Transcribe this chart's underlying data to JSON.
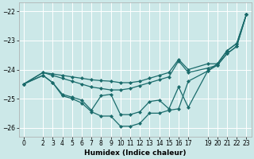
{
  "xlabel": "Humidex (Indice chaleur)",
  "bg_color": "#cce8e8",
  "line_color": "#1a6b6b",
  "grid_color": "#ffffff",
  "xlim": [
    -0.5,
    23.5
  ],
  "ylim": [
    -26.3,
    -21.7
  ],
  "yticks": [
    -26,
    -25,
    -24,
    -23,
    -22
  ],
  "xticks": [
    0,
    2,
    3,
    4,
    5,
    6,
    7,
    8,
    9,
    10,
    11,
    12,
    13,
    14,
    15,
    16,
    17,
    19,
    20,
    21,
    22,
    23
  ],
  "series": [
    {
      "x": [
        0,
        2,
        3,
        4,
        5,
        6,
        7,
        8,
        9,
        10,
        11,
        12,
        13,
        14,
        15,
        16,
        17,
        19,
        20,
        21,
        22,
        23
      ],
      "y": [
        -24.5,
        -24.1,
        -24.15,
        -24.2,
        -24.25,
        -24.3,
        -24.35,
        -24.38,
        -24.4,
        -24.45,
        -24.45,
        -24.4,
        -24.3,
        -24.2,
        -24.1,
        -23.65,
        -24.0,
        -23.8,
        -23.8,
        -23.35,
        -23.1,
        -22.1
      ]
    },
    {
      "x": [
        0,
        2,
        3,
        4,
        5,
        6,
        7,
        8,
        9,
        10,
        11,
        12,
        13,
        14,
        15,
        16,
        17,
        19,
        20,
        21,
        22,
        23
      ],
      "y": [
        -24.5,
        -24.1,
        -24.2,
        -24.3,
        -24.4,
        -24.5,
        -24.6,
        -24.65,
        -24.7,
        -24.7,
        -24.65,
        -24.55,
        -24.45,
        -24.35,
        -24.25,
        -23.7,
        -24.1,
        -23.95,
        -23.85,
        -23.45,
        -23.2,
        -22.1
      ]
    },
    {
      "x": [
        0,
        2,
        3,
        4,
        5,
        6,
        7,
        8,
        9,
        10,
        11,
        12,
        13,
        14,
        15,
        16,
        17,
        19,
        20,
        21,
        22,
        23
      ],
      "y": [
        -24.5,
        -24.2,
        -24.45,
        -24.9,
        -25.0,
        -25.15,
        -25.45,
        -25.6,
        -25.6,
        -25.95,
        -25.95,
        -25.85,
        -25.5,
        -25.5,
        -25.4,
        -25.35,
        -24.4,
        -24.05,
        -23.8,
        -23.35,
        -23.1,
        -22.1
      ]
    },
    {
      "x": [
        0,
        2,
        3,
        4,
        5,
        6,
        7,
        8,
        9,
        10,
        11,
        12,
        13,
        14,
        15,
        16,
        17,
        19,
        20,
        21,
        22,
        23
      ],
      "y": [
        -24.5,
        -24.2,
        -24.45,
        -24.85,
        -24.95,
        -25.05,
        -25.4,
        -24.9,
        -24.85,
        -25.55,
        -25.55,
        -25.45,
        -25.1,
        -25.05,
        -25.35,
        -24.6,
        -25.3,
        -24.05,
        -23.85,
        -23.45,
        -23.2,
        -22.1
      ]
    }
  ],
  "marker": "D",
  "markersize": 2.0,
  "linewidth": 0.9,
  "tick_fontsize": 5.5
}
